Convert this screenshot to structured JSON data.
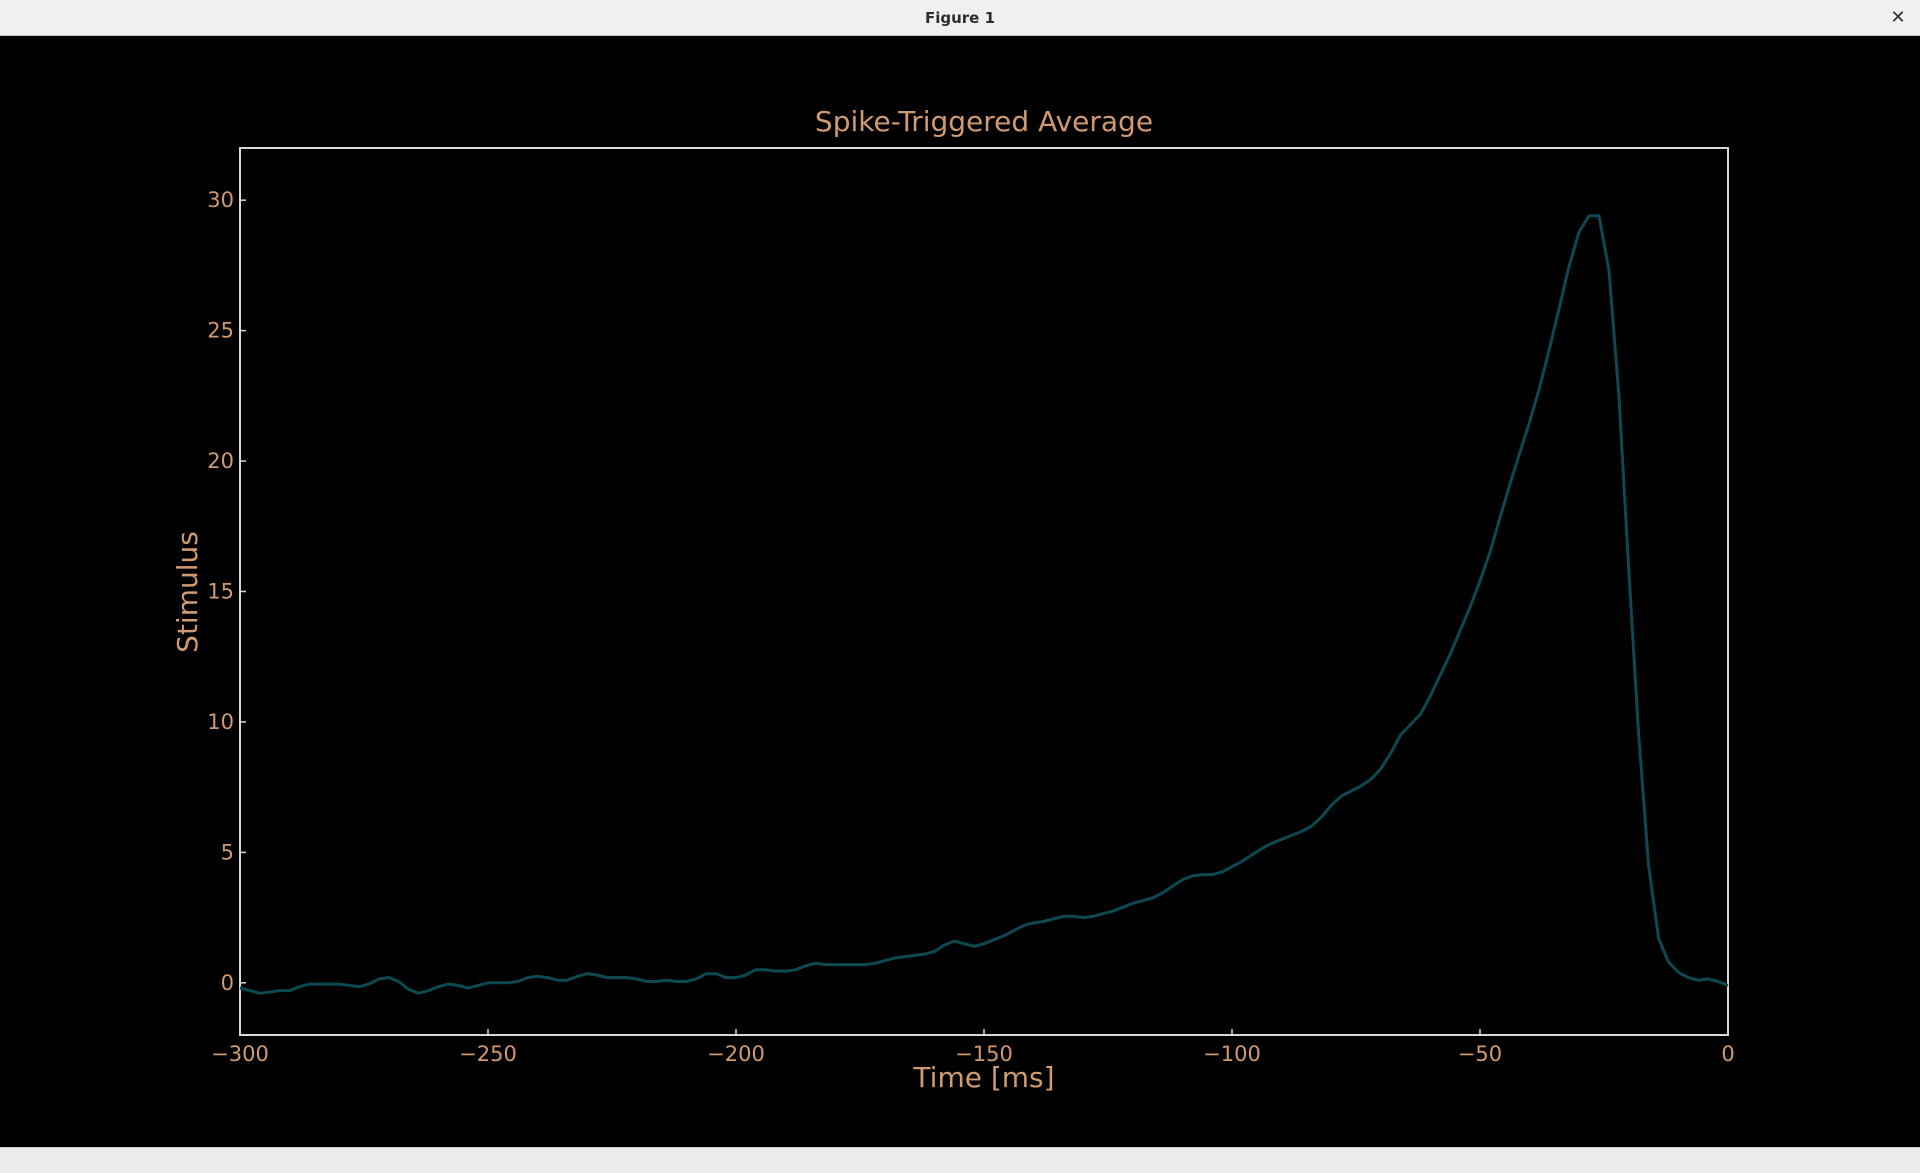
{
  "window": {
    "title": "Figure 1",
    "close_glyph": "✕",
    "close_icon": "close-icon"
  },
  "colors": {
    "background": "#000000",
    "text": "#d09a6e",
    "axes_frame": "#d8d8d8",
    "line": "#0b4a50"
  },
  "chart_data": {
    "type": "line",
    "title": "Spike-Triggered Average",
    "xlabel": "Time [ms]",
    "ylabel": "Stimulus",
    "xlim": [
      -300,
      0
    ],
    "ylim": [
      -2,
      32
    ],
    "xticks": [
      -300,
      -250,
      -200,
      -150,
      -100,
      -50,
      0
    ],
    "xtick_labels": [
      "−300",
      "−250",
      "−200",
      "−150",
      "−100",
      "−50",
      "0"
    ],
    "yticks": [
      0,
      5,
      10,
      15,
      20,
      25,
      30
    ],
    "ytick_labels": [
      "0",
      "5",
      "10",
      "15",
      "20",
      "25",
      "30"
    ],
    "grid": false,
    "series": [
      {
        "x": [
          -300,
          -298,
          -296,
          -294,
          -292,
          -290,
          -288,
          -286,
          -284,
          -282,
          -280,
          -278,
          -276,
          -274,
          -272,
          -270,
          -268,
          -266,
          -264,
          -262,
          -260,
          -258,
          -256,
          -254,
          -252,
          -250,
          -248,
          -246,
          -244,
          -242,
          -240,
          -238,
          -236,
          -234,
          -232,
          -230,
          -228,
          -226,
          -224,
          -222,
          -220,
          -218,
          -216,
          -214,
          -212,
          -210,
          -208,
          -206,
          -204,
          -202,
          -200,
          -198,
          -196,
          -194,
          -192,
          -190,
          -188,
          -186,
          -184,
          -182,
          -180,
          -178,
          -176,
          -174,
          -172,
          -170,
          -168,
          -166,
          -164,
          -162,
          -160,
          -158,
          -156,
          -154,
          -152,
          -150,
          -148,
          -146,
          -144,
          -142,
          -140,
          -138,
          -136,
          -134,
          -132,
          -130,
          -128,
          -126,
          -124,
          -122,
          -120,
          -118,
          -116,
          -114,
          -112,
          -110,
          -108,
          -106,
          -104,
          -102,
          -100,
          -98,
          -96,
          -94,
          -92,
          -90,
          -88,
          -86,
          -84,
          -82,
          -80,
          -78,
          -76,
          -74,
          -72,
          -70,
          -68,
          -66,
          -64,
          -62,
          -60,
          -58,
          -56,
          -54,
          -52,
          -50,
          -48,
          -46,
          -44,
          -42,
          -40,
          -38,
          -36,
          -34,
          -32,
          -30,
          -28,
          -26,
          -24,
          -22,
          -20,
          -18,
          -16,
          -14,
          -12,
          -10,
          -8,
          -6,
          -4,
          -2,
          0
        ],
        "y": [
          -0.2,
          -0.3,
          -0.4,
          -0.35,
          -0.3,
          -0.3,
          -0.15,
          -0.05,
          -0.05,
          -0.05,
          -0.05,
          -0.1,
          -0.15,
          -0.05,
          0.15,
          0.2,
          0.05,
          -0.25,
          -0.4,
          -0.3,
          -0.15,
          -0.05,
          -0.1,
          -0.2,
          -0.1,
          0.0,
          0.0,
          0.0,
          0.05,
          0.2,
          0.25,
          0.2,
          0.1,
          0.1,
          0.25,
          0.35,
          0.3,
          0.2,
          0.2,
          0.2,
          0.15,
          0.05,
          0.05,
          0.1,
          0.05,
          0.05,
          0.15,
          0.35,
          0.35,
          0.2,
          0.2,
          0.3,
          0.5,
          0.5,
          0.45,
          0.45,
          0.5,
          0.65,
          0.75,
          0.7,
          0.7,
          0.7,
          0.7,
          0.7,
          0.75,
          0.85,
          0.95,
          1.0,
          1.05,
          1.1,
          1.2,
          1.45,
          1.6,
          1.5,
          1.4,
          1.5,
          1.65,
          1.8,
          2.0,
          2.2,
          2.3,
          2.35,
          2.45,
          2.55,
          2.55,
          2.5,
          2.55,
          2.65,
          2.75,
          2.9,
          3.05,
          3.15,
          3.25,
          3.45,
          3.7,
          3.95,
          4.1,
          4.15,
          4.15,
          4.25,
          4.45,
          4.65,
          4.9,
          5.15,
          5.35,
          5.5,
          5.65,
          5.8,
          6.0,
          6.35,
          6.8,
          7.15,
          7.35,
          7.55,
          7.8,
          8.2,
          8.8,
          9.5,
          9.9,
          10.3,
          11.0,
          11.8,
          12.6,
          13.5,
          14.4,
          15.4,
          16.5,
          17.8,
          19.1,
          20.3,
          21.5,
          22.8,
          24.3,
          25.9,
          27.5,
          28.8,
          29.4,
          29.4,
          27.3,
          22.5,
          15.8,
          9.5,
          4.5,
          1.7,
          0.8,
          0.4,
          0.2,
          0.1,
          0.15,
          0.05,
          -0.1
        ]
      }
    ]
  }
}
